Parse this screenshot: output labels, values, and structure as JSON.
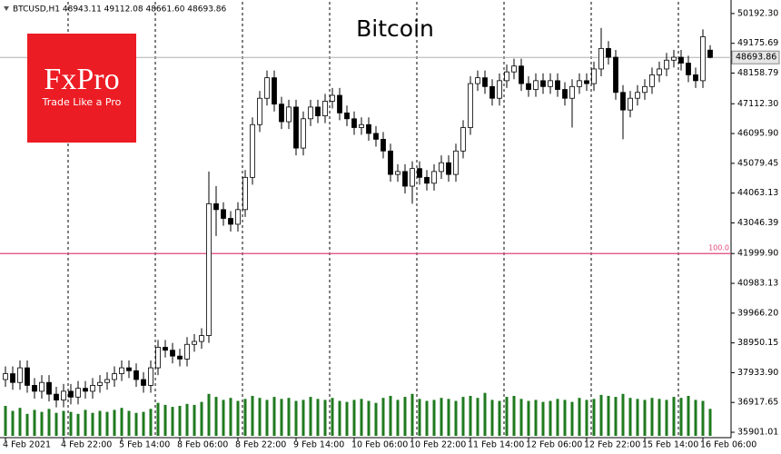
{
  "chart_data": {
    "type": "candlestick",
    "header": "BTCUSD,H1  48943.11 49112.08 48661.60 48693.86",
    "title": "Bitcoin",
    "open": [
      37700,
      37900,
      37600,
      38100,
      37500,
      37300,
      37600,
      37200,
      37000,
      37300,
      37100,
      37400,
      37300,
      37500,
      37600,
      37700,
      37900,
      38100,
      38000,
      37700,
      37500,
      38100,
      38800,
      38700,
      38500,
      38400,
      38900,
      39000,
      39200,
      43700,
      43500,
      43200,
      43000,
      43500,
      44600,
      46400,
      47300,
      48000,
      47100,
      46500,
      47000,
      45600,
      46600,
      47000,
      46700,
      47200,
      47400,
      46800,
      46600,
      46300,
      46400,
      46100,
      45900,
      45500,
      44700,
      44800,
      44300,
      44900,
      44600,
      44400,
      44800,
      45100,
      44700,
      45500,
      46300,
      47800,
      48000,
      47700,
      47300,
      47900,
      48200,
      48400,
      47800,
      47600,
      47900,
      47700,
      47900,
      47600,
      47300,
      47700,
      47900,
      47800,
      48300,
      49000,
      48700,
      47500,
      46900,
      47300,
      47500,
      47700,
      48100,
      48300,
      48600,
      48700,
      48500,
      48100,
      47900,
      48943.11
    ],
    "high": [
      38150,
      38150,
      38350,
      38350,
      37750,
      37850,
      37850,
      37450,
      37550,
      37550,
      37650,
      37650,
      37750,
      37850,
      37950,
      38150,
      38350,
      38350,
      38250,
      37950,
      38350,
      39050,
      39050,
      38950,
      38750,
      39150,
      39250,
      39450,
      44800,
      44300,
      43750,
      43450,
      43750,
      44850,
      46650,
      47550,
      48250,
      48250,
      47350,
      47250,
      47250,
      46850,
      47250,
      47250,
      47450,
      47650,
      47650,
      47050,
      46850,
      46650,
      46650,
      46350,
      46150,
      45750,
      45050,
      45050,
      45150,
      45150,
      44850,
      45050,
      45350,
      45350,
      45750,
      46550,
      48050,
      48250,
      48250,
      47950,
      48150,
      48450,
      48650,
      48650,
      48050,
      48150,
      48150,
      48150,
      48150,
      47850,
      47950,
      48150,
      48150,
      48550,
      49700,
      49250,
      48950,
      47750,
      47550,
      47750,
      47950,
      48350,
      48550,
      48850,
      48950,
      48950,
      48750,
      48350,
      49650,
      49112.08
    ],
    "low": [
      37450,
      37350,
      37350,
      37250,
      37050,
      37050,
      36950,
      36750,
      36750,
      36850,
      36850,
      37050,
      37050,
      37250,
      37350,
      37450,
      37650,
      37750,
      37450,
      37250,
      37250,
      37850,
      38450,
      38250,
      38150,
      38150,
      38650,
      38750,
      38950,
      42600,
      42950,
      42750,
      42750,
      43250,
      44350,
      46150,
      47050,
      46850,
      46250,
      46250,
      45350,
      45350,
      46350,
      46450,
      46450,
      46950,
      46550,
      46350,
      46050,
      46050,
      45850,
      45650,
      45250,
      44450,
      44450,
      44050,
      43700,
      44350,
      44150,
      44150,
      44550,
      44450,
      44450,
      45250,
      46050,
      47550,
      47450,
      47050,
      47050,
      47650,
      47950,
      47550,
      47350,
      47350,
      47450,
      47450,
      47350,
      47050,
      46300,
      47450,
      47550,
      47550,
      48050,
      48450,
      47250,
      45900,
      46650,
      47050,
      47250,
      47450,
      47850,
      48050,
      48350,
      48250,
      47850,
      47650,
      47650,
      48661.6
    ],
    "close": [
      37900,
      37600,
      38100,
      37500,
      37300,
      37600,
      37200,
      37000,
      37300,
      37100,
      37400,
      37300,
      37500,
      37600,
      37700,
      37900,
      38100,
      38000,
      37700,
      37500,
      38100,
      38800,
      38700,
      38500,
      38400,
      38900,
      39000,
      39200,
      43700,
      43500,
      43200,
      43000,
      43500,
      44600,
      46400,
      47300,
      48000,
      47100,
      46500,
      47000,
      45600,
      46600,
      47000,
      46700,
      47200,
      47400,
      46800,
      46600,
      46300,
      46400,
      46100,
      45900,
      45500,
      44700,
      44800,
      44300,
      44900,
      44600,
      44400,
      44800,
      45100,
      44700,
      45500,
      46300,
      47800,
      48000,
      47700,
      47300,
      47900,
      48200,
      48400,
      47800,
      47600,
      47900,
      47700,
      47900,
      47600,
      47300,
      47700,
      47900,
      47800,
      48300,
      49000,
      48700,
      47500,
      46900,
      47300,
      47500,
      47700,
      48100,
      48300,
      48600,
      48700,
      48500,
      48100,
      47900,
      49400,
      48693.86
    ],
    "volume": {
      "color": "#1f7a1f",
      "values": [
        3000,
        2500,
        2800,
        2200,
        2600,
        2400,
        2700,
        2300,
        2500,
        2400,
        2200,
        2600,
        2300,
        2500,
        2400,
        2600,
        2800,
        2500,
        2300,
        2400,
        2700,
        3300,
        3100,
        2900,
        3000,
        3200,
        3100,
        3400,
        4200,
        3900,
        3600,
        3800,
        3500,
        3700,
        4000,
        3800,
        3600,
        3900,
        3700,
        3800,
        3500,
        3600,
        3900,
        3700,
        3600,
        3800,
        3500,
        3400,
        3600,
        3700,
        3500,
        3300,
        3800,
        4000,
        3600,
        3900,
        4200,
        3700,
        3500,
        3600,
        3800,
        3700,
        3500,
        3900,
        4000,
        3800,
        4300,
        3600,
        3500,
        3900,
        4000,
        3700,
        3500,
        3600,
        3400,
        3500,
        3700,
        3600,
        3400,
        3800,
        3600,
        3700,
        4100,
        4000,
        3900,
        4200,
        3800,
        3700,
        3600,
        3800,
        3700,
        3600,
        3900,
        3800,
        4000,
        3600,
        3500,
        2700
      ]
    },
    "bull_color": "#ffffff",
    "bear_color": "#000000",
    "xlim": [
      -0.5,
      99.5
    ],
    "xticks": [
      {
        "value": 0,
        "label": "4 Feb 2021"
      },
      {
        "value": 8,
        "label": "4 Feb 22:00"
      },
      {
        "value": 16,
        "label": "5 Feb 14:00"
      },
      {
        "value": 24,
        "label": "8 Feb 06:00"
      },
      {
        "value": 32,
        "label": "8 Feb 22:00"
      },
      {
        "value": 40,
        "label": "9 Feb 14:00"
      },
      {
        "value": 48,
        "label": "10 Feb 06:00"
      },
      {
        "value": 56,
        "label": "10 Feb 22:00"
      },
      {
        "value": 64,
        "label": "11 Feb 14:00"
      },
      {
        "value": 72,
        "label": "12 Feb 06:00"
      },
      {
        "value": 80,
        "label": "12 Feb 22:00"
      },
      {
        "value": 88,
        "label": "15 Feb 14:00"
      },
      {
        "value": 96,
        "label": "16 Feb 06:00"
      }
    ],
    "ylim": [
      35716,
      50592
    ],
    "yticks": [
      {
        "value": 50192.3,
        "label": "50192.30"
      },
      49175.69,
      48158.79,
      {
        "value": 47112.3,
        "label": "47112.30"
      },
      {
        "value": 46095.9,
        "label": "46095.90"
      },
      45079.45,
      44063.13,
      43046.39,
      {
        "value": 41999.9,
        "label": "41999.90"
      },
      40983.13,
      {
        "value": 39966.2,
        "label": "39966.20"
      },
      38950.15,
      {
        "value": 37933.9,
        "label": "37933.90"
      },
      36917.65,
      35901.01
    ],
    "levels": [
      {
        "value": 41999.9,
        "label": "100.0",
        "color": "#e0457b"
      }
    ]
  },
  "logo": {
    "brand": "FxPro",
    "tagline": "Trade Like a Pro"
  }
}
